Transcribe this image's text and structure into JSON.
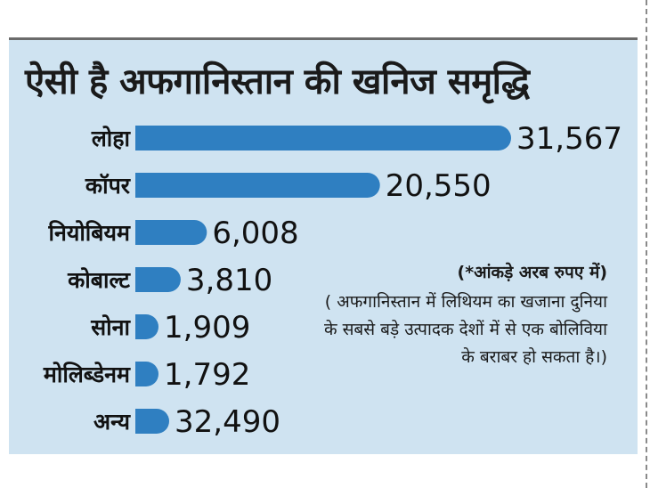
{
  "chart_data": {
    "type": "bar",
    "orientation": "horizontal",
    "title": "ऐसी है अफगानिस्तान की खनिज समृद्धि",
    "categories": [
      "लोहा",
      "कॉपर",
      "नियोबियम",
      "कोबाल्ट",
      "सोना",
      "मोलिब्डेनम",
      "अन्य"
    ],
    "values": [
      31567,
      20550,
      6008,
      3810,
      1909,
      1792,
      32490
    ],
    "value_labels": [
      "31,567",
      "20,550",
      "6,008",
      "3,810",
      "1,909",
      "1,792",
      "32,490"
    ],
    "unit_note": "(*आंकड़े अरब रुपए में)",
    "annotation": "( अफगानिस्तान में लिथियम का खजाना दुनिया के सबसे बड़े उत्पादक देशों में से एक बोलिविया के बराबर हो सकता है।)",
    "bar_color": "#2f7fc1",
    "background_color": "#cfe3f1"
  }
}
